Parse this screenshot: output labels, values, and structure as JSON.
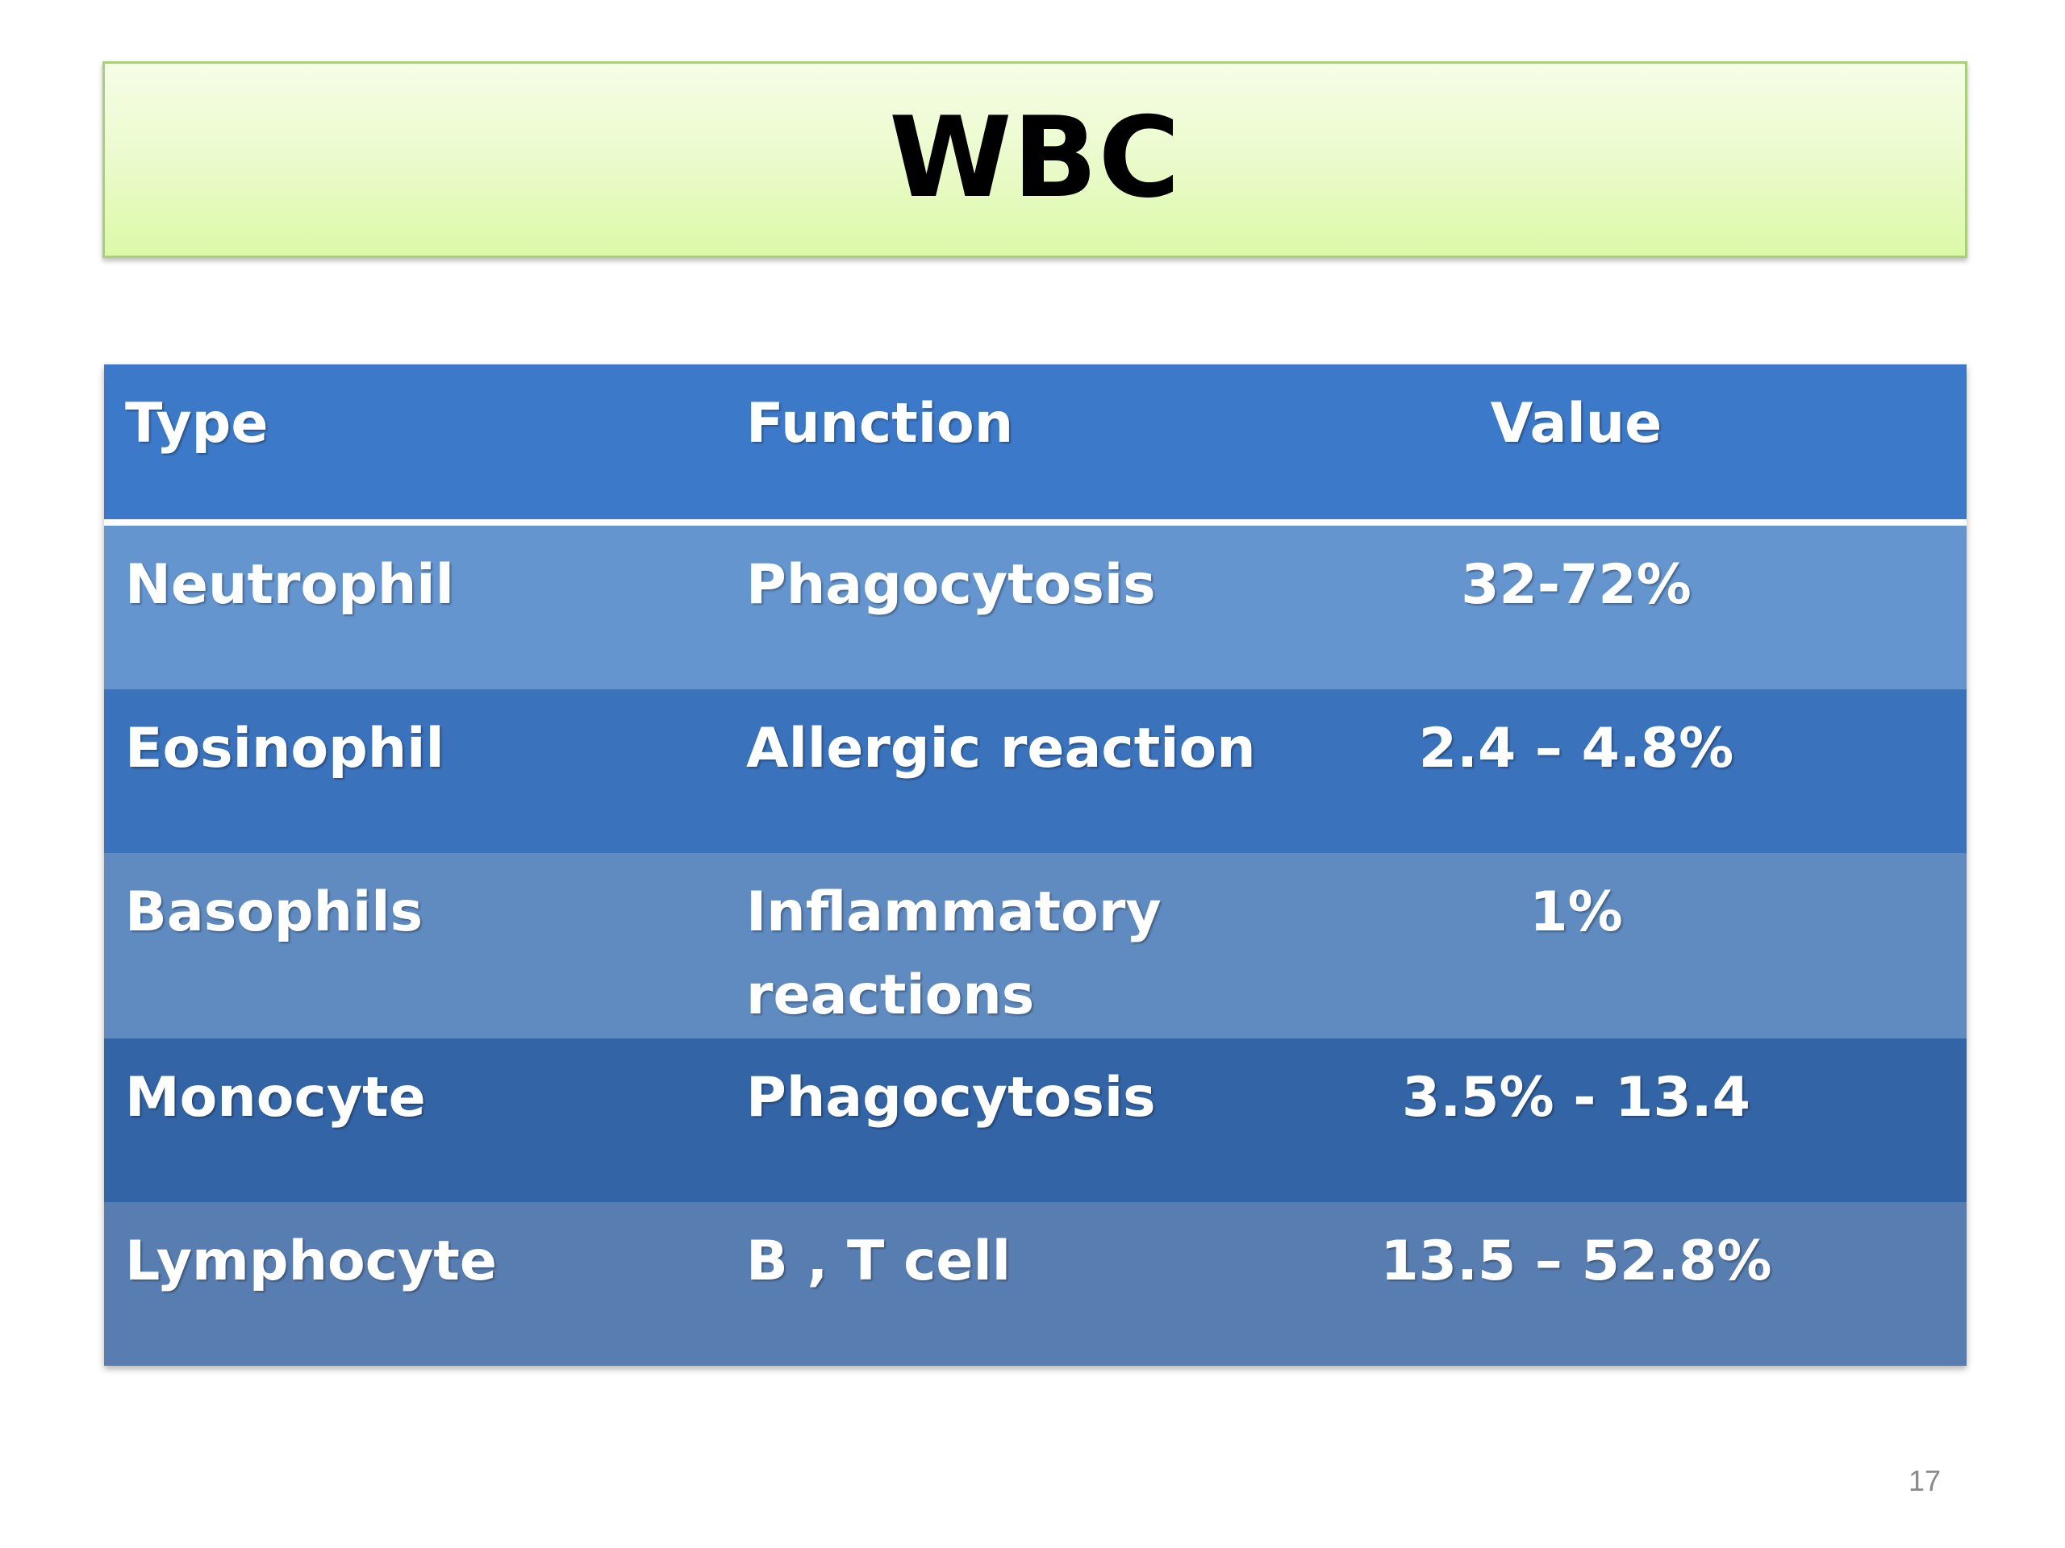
{
  "slide": {
    "title": "WBC",
    "page_number": "17"
  },
  "table": {
    "headers": {
      "type": "Type",
      "function": "Function",
      "value": "Value"
    },
    "rows": [
      {
        "type": "Neutrophil",
        "function": "Phagocytosis",
        "value": "32-72%"
      },
      {
        "type": "Eosinophil",
        "function": "Allergic reaction",
        "value": "2.4 – 4.8%"
      },
      {
        "type": "Basophils",
        "function": "Inflammatory reactions",
        "value": "1%"
      },
      {
        "type": "Monocyte",
        "function": "Phagocytosis",
        "value": "3.5% - 13.4"
      },
      {
        "type": "Lymphocyte",
        "function": "B , T cell",
        "value": "13.5 – 52.8%"
      }
    ]
  },
  "colors": {
    "title_fill": "#e6fbc0",
    "header_fill": "#3c79c8",
    "row_fills": [
      "#6495cf",
      "#3a72bc",
      "#5f8bc0",
      "#3365a6",
      "#587eb1"
    ],
    "cell_text": "#ffffff"
  }
}
